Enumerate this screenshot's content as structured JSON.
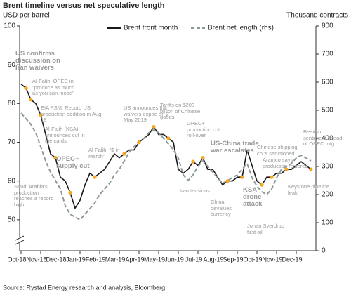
{
  "chart_data": {
    "type": "line",
    "title": "Brent timeline versus net speculative length",
    "y_label": "USD per barrel",
    "y2_label": "Thousand contracts",
    "source": "Source: Rystad Energy research and analysis, Bloomberg",
    "categories": [
      "Oct-18",
      null,
      null,
      null,
      "Nov-18",
      null,
      null,
      null,
      "Dec-18",
      null,
      null,
      null,
      "Jan-19",
      null,
      null,
      null,
      "Feb-19",
      null,
      null,
      null,
      "Mar-19",
      null,
      null,
      null,
      "Apr-19",
      null,
      null,
      null,
      "May-19",
      null,
      null,
      null,
      "Jun-19",
      null,
      null,
      null,
      "Jul-19",
      null,
      null,
      null,
      "Aug-19",
      null,
      null,
      null,
      "Sep-19",
      null,
      null,
      null,
      "Oct-19",
      null,
      null,
      null,
      "Nov-19",
      null,
      null,
      null,
      "Dec-19",
      null,
      null,
      null
    ],
    "series": [
      {
        "name": "Brent front month",
        "color": "#1a1a1a",
        "values": [
          85,
          84,
          81,
          80,
          77,
          72,
          67,
          66,
          61,
          60,
          57,
          53,
          55,
          59,
          62,
          61,
          62,
          63,
          65,
          67,
          66,
          67,
          68,
          68,
          70,
          71,
          72,
          74,
          72,
          72,
          71,
          70,
          63,
          62,
          63,
          65,
          64,
          66,
          63,
          63,
          61,
          59,
          60,
          60,
          61,
          61,
          68,
          64,
          60,
          59,
          61,
          61,
          62,
          62,
          63,
          63,
          64,
          65,
          64,
          63
        ]
      },
      {
        "name": "Brent net length (rhs)",
        "color": "#8c9a94",
        "axis": "y2",
        "values": [
          490,
          470,
          450,
          420,
          370,
          320,
          280,
          250,
          220,
          160,
          130,
          120,
          110,
          130,
          150,
          170,
          200,
          220,
          240,
          270,
          290,
          320,
          350,
          370,
          390,
          400,
          420,
          430,
          420,
          400,
          380,
          360,
          330,
          270,
          250,
          270,
          300,
          320,
          300,
          280,
          260,
          240,
          250,
          260,
          270,
          290,
          310,
          260,
          230,
          210,
          200,
          220,
          260,
          290,
          300,
          310,
          330,
          340,
          330,
          320
        ]
      }
    ],
    "ylim": [
      42,
      100
    ],
    "yticks": [
      50,
      60,
      70,
      80,
      90,
      100
    ],
    "y2lim": [
      0,
      800
    ],
    "y2ticks": [
      0,
      100,
      200,
      300,
      400,
      500,
      600,
      700,
      800
    ],
    "marker_color": "#f5a623",
    "annotations": [
      {
        "text": "US confirms discussion on Iran waivers",
        "bold": true
      },
      {
        "text": "Al-Falih: OPEC in \"produce as much as you can mode\"",
        "bold": false
      },
      {
        "text": "EIA PSM: Record US production addition in Aug-18",
        "bold": false
      },
      {
        "text": "Al-Falih (KSA) announces cut in the cards",
        "bold": false
      },
      {
        "text": "OPEC+ supply cut",
        "bold": true
      },
      {
        "text": "Saudi Arabia's production reaches a record high",
        "bold": false
      },
      {
        "text": "Al-Falih: \"$ in March\"",
        "bold": false
      },
      {
        "text": "US announces Iran waivers expire on 2 May 2019",
        "bold": false
      },
      {
        "text": "Tariffs on $200 billion of Chinese goods",
        "bold": false
      },
      {
        "text": "OPEC+ production cut roll-over",
        "bold": false
      },
      {
        "text": "US-China trade war escalates",
        "bold": true
      },
      {
        "text": "Iran tensions",
        "bold": false
      },
      {
        "text": "China devalues currency",
        "bold": false
      },
      {
        "text": "KSA drone attack",
        "bold": true
      },
      {
        "text": "Chinese shipping co.'s sanctioned",
        "bold": false
      },
      {
        "text": "Aramco says production restored",
        "bold": false
      },
      {
        "text": "Johan Sverdrup first oil",
        "bold": false
      },
      {
        "text": "Keystone pipeline leak",
        "bold": false
      },
      {
        "text": "Bearish sentiment ahead of OPEC mtg",
        "bold": false
      }
    ]
  }
}
